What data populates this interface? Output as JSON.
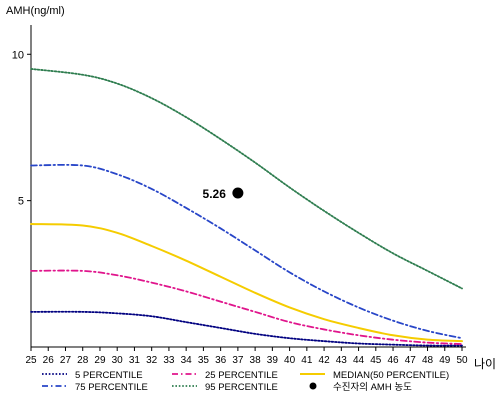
{
  "chart_data": {
    "type": "line",
    "y_axis_title": "AMH(ng/ml)",
    "x_axis_title": "나이",
    "ylim": [
      0,
      11
    ],
    "xlim": [
      25,
      50
    ],
    "x_ticks": [
      25,
      26,
      27,
      28,
      29,
      30,
      31,
      32,
      33,
      34,
      35,
      36,
      37,
      38,
      39,
      40,
      41,
      42,
      43,
      44,
      45,
      46,
      47,
      48,
      49,
      50
    ],
    "y_ticks": [
      5,
      10
    ],
    "grid": false,
    "legend_position": "bottom",
    "x": [
      25,
      28,
      30,
      32,
      34,
      36,
      38,
      40,
      42,
      44,
      46,
      48,
      50
    ],
    "series": [
      {
        "key": "p5",
        "name": "5 PERCENTILE",
        "color": "#000080",
        "dash": "dotted",
        "values": [
          1.2,
          1.2,
          1.15,
          1.05,
          0.85,
          0.65,
          0.45,
          0.3,
          0.2,
          0.12,
          0.08,
          0.05,
          0.05
        ]
      },
      {
        "key": "p25",
        "name": "25 PERCENTILE",
        "color": "#e0158c",
        "dash": "dashdot",
        "values": [
          2.6,
          2.6,
          2.45,
          2.2,
          1.9,
          1.55,
          1.2,
          0.85,
          0.6,
          0.4,
          0.25,
          0.15,
          0.1
        ]
      },
      {
        "key": "p50",
        "name": "MEDIAN(50 PERCENTILE)",
        "color": "#f5cc00",
        "dash": "solid",
        "values": [
          4.2,
          4.15,
          3.9,
          3.45,
          2.95,
          2.4,
          1.85,
          1.35,
          0.95,
          0.65,
          0.4,
          0.25,
          0.2
        ]
      },
      {
        "key": "p75",
        "name": "75 PERCENTILE",
        "color": "#2846c8",
        "dash": "dashdot",
        "values": [
          6.2,
          6.2,
          5.9,
          5.4,
          4.75,
          4.05,
          3.3,
          2.55,
          1.9,
          1.35,
          0.9,
          0.55,
          0.3
        ]
      },
      {
        "key": "p95",
        "name": "95 PERCENTILE",
        "color": "#2e7d4f",
        "dash": "dotted",
        "values": [
          9.5,
          9.3,
          9.0,
          8.5,
          7.85,
          7.1,
          6.3,
          5.45,
          4.65,
          3.9,
          3.2,
          2.6,
          2.0
        ]
      }
    ],
    "patient_point": {
      "name": "수진자의 AMH 농도",
      "x": 37,
      "y": 5.26,
      "label": "5.26",
      "color": "#000000"
    }
  }
}
